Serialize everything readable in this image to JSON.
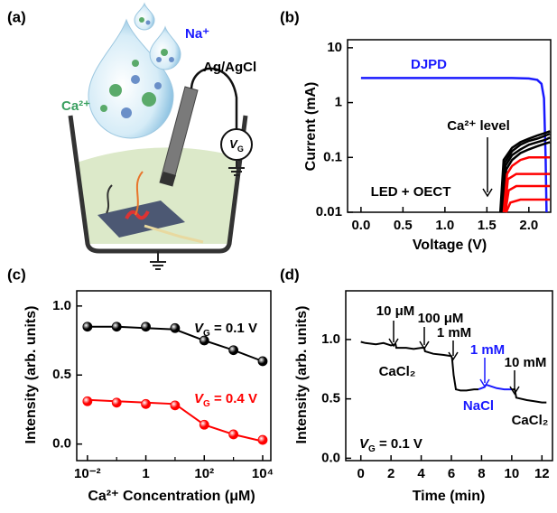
{
  "illustration": {
    "label": "(a)",
    "na": "Na⁺",
    "ca": "Ca²⁺",
    "electrode": "Ag/AgCl",
    "vg": {
      "var": "V",
      "sub": "G"
    }
  },
  "chart_data": [
    {
      "type": "line",
      "label": "(b)",
      "xlabel": "Voltage (V)",
      "ylabel": "Current (mA)",
      "ylog": true,
      "xlim": [
        -0.16,
        2.26
      ],
      "ylim": [
        0.01,
        14
      ],
      "xticks": [
        {
          "value": 0,
          "label": "0.0"
        },
        0.5,
        {
          "value": 1,
          "label": "1.0"
        },
        1.5,
        {
          "value": 2,
          "label": "2.0"
        }
      ],
      "yticks": [
        0.01,
        0.1,
        1,
        10
      ],
      "series": [
        {
          "name": "DJPD",
          "color": "#1a1aff",
          "x": [
            0,
            0.5,
            1,
            1.5,
            1.8,
            2.0,
            2.1,
            2.15,
            2.18,
            2.2,
            2.21
          ],
          "values": [
            2.8,
            2.8,
            2.8,
            2.8,
            2.8,
            2.75,
            2.6,
            2.2,
            1.2,
            0.1,
            0.01
          ]
        },
        {
          "color": "#000000",
          "x": [
            1.66,
            1.7,
            1.8,
            1.9,
            2.0,
            2.1,
            2.2,
            2.25
          ],
          "values": [
            0.01,
            0.09,
            0.15,
            0.19,
            0.22,
            0.25,
            0.28,
            0.3
          ]
        },
        {
          "color": "#000000",
          "x": [
            1.67,
            1.71,
            1.8,
            1.9,
            2.0,
            2.1,
            2.2,
            2.25
          ],
          "values": [
            0.01,
            0.08,
            0.13,
            0.17,
            0.2,
            0.22,
            0.25,
            0.27
          ]
        },
        {
          "color": "#000000",
          "x": [
            1.68,
            1.72,
            1.8,
            1.9,
            2.0,
            2.1,
            2.2,
            2.25
          ],
          "values": [
            0.01,
            0.07,
            0.11,
            0.14,
            0.17,
            0.19,
            0.21,
            0.23
          ]
        },
        {
          "color": "#000000",
          "x": [
            1.69,
            1.73,
            1.8,
            1.9,
            2.0,
            2.1,
            2.2,
            2.25
          ],
          "values": [
            0.01,
            0.06,
            0.09,
            0.12,
            0.14,
            0.16,
            0.18,
            0.19
          ]
        },
        {
          "color": "#ff0000",
          "x": [
            1.7,
            1.74,
            1.8,
            1.9,
            2.0,
            2.1,
            2.2,
            2.25
          ],
          "values": [
            0.01,
            0.05,
            0.07,
            0.09,
            0.1,
            0.1,
            0.1,
            0.1
          ]
        },
        {
          "color": "#ff0000",
          "x": [
            1.71,
            1.75,
            1.85,
            2.0,
            2.1,
            2.2,
            2.25
          ],
          "values": [
            0.01,
            0.04,
            0.05,
            0.05,
            0.05,
            0.05,
            0.05
          ]
        },
        {
          "color": "#ff0000",
          "x": [
            1.72,
            1.76,
            1.85,
            2.0,
            2.1,
            2.2,
            2.25
          ],
          "values": [
            0.01,
            0.025,
            0.03,
            0.03,
            0.03,
            0.03,
            0.03
          ]
        },
        {
          "color": "#ff0000",
          "x": [
            1.73,
            1.78,
            1.9,
            2.0,
            2.1,
            2.2,
            2.25
          ],
          "values": [
            0.01,
            0.015,
            0.017,
            0.017,
            0.017,
            0.017,
            0.017
          ]
        }
      ],
      "annotations": [
        "Ca²⁺ level",
        "LED + OECT"
      ]
    },
    {
      "type": "scatter",
      "label": "(c)",
      "xlabel": "Ca²⁺ Concentration (μM)",
      "ylabel": "Intensity (arb. units)",
      "xlog": true,
      "xlim": [
        0.0043,
        19000
      ],
      "ylim": [
        -0.12,
        1.11
      ],
      "xticks": [
        {
          "value": 0.01,
          "label": "10⁻²"
        },
        1,
        {
          "value": 100,
          "label": "10²"
        },
        {
          "value": 10000,
          "label": "10⁴"
        }
      ],
      "xminor": [
        0.1,
        10,
        1000
      ],
      "yticks": [
        {
          "value": 0,
          "label": "0.0"
        },
        0.5,
        {
          "value": 1,
          "label": "1.0"
        }
      ],
      "x": [
        0.01,
        0.1,
        1,
        10,
        100,
        1000,
        10000
      ],
      "series": [
        {
          "color": "#000000",
          "values": [
            0.85,
            0.85,
            0.85,
            0.84,
            0.75,
            0.68,
            0.6
          ],
          "fit": [
            0.85,
            0.85,
            0.84,
            0.83,
            0.75,
            0.68,
            0.6
          ],
          "annotation": {
            "var": "V",
            "sub": "G",
            "text": " = 0.1 V"
          }
        },
        {
          "color": "#ff0000",
          "values": [
            0.31,
            0.3,
            0.29,
            0.28,
            0.14,
            0.07,
            0.03
          ],
          "fit": [
            0.32,
            0.31,
            0.3,
            0.29,
            0.14,
            0.07,
            0.02
          ],
          "annotation": {
            "var": "V",
            "sub": "G",
            "text": " = 0.4 V"
          }
        }
      ]
    },
    {
      "type": "line",
      "label": "(d)",
      "xlabel": "Time (min)",
      "ylabel": "Intensity (arb. units)",
      "xlim": [
        -1.0,
        12.7
      ],
      "ylim": [
        -0.02,
        1.41
      ],
      "xticks": [
        0,
        2,
        4,
        6,
        8,
        10,
        12
      ],
      "yticks": [
        {
          "value": 0,
          "label": "0.0"
        },
        0.5,
        {
          "value": 1,
          "label": "1.0"
        }
      ],
      "series": [
        {
          "color": "#000000",
          "x": [
            0,
            0.3,
            1,
            1.5,
            2,
            2.3,
            2.35,
            3,
            3.5,
            4,
            4.2,
            4.25,
            4.8,
            5.5,
            6,
            6.05,
            6.15,
            6.3,
            6.6,
            7,
            7.5,
            7.8
          ],
          "values": [
            0.98,
            0.97,
            0.96,
            0.97,
            0.95,
            0.96,
            0.93,
            0.93,
            0.92,
            0.93,
            0.93,
            0.9,
            0.88,
            0.87,
            0.86,
            0.84,
            0.7,
            0.58,
            0.57,
            0.57,
            0.58,
            0.58
          ]
        },
        {
          "color": "#1a1aff",
          "x": [
            7.8,
            8.2,
            8.3,
            9,
            9.5,
            10
          ],
          "values": [
            0.58,
            0.6,
            0.62,
            0.59,
            0.58,
            0.58
          ]
        },
        {
          "color": "#000000",
          "x": [
            10,
            10.2,
            10.3,
            11,
            11.5,
            12,
            12.3
          ],
          "values": [
            0.58,
            0.58,
            0.51,
            0.49,
            0.48,
            0.47,
            0.47
          ]
        }
      ],
      "annotations": [
        {
          "text": "10 μM"
        },
        {
          "text": "100 μM"
        },
        {
          "text": "1 mM"
        },
        {
          "text": "1 mM",
          "color": "#1a1aff"
        },
        {
          "text": "10 mM"
        },
        {
          "text": "CaCl₂"
        },
        {
          "text": "NaCl",
          "color": "#1a1aff"
        },
        {
          "text": "CaCl₂"
        }
      ],
      "condition": {
        "var": "V",
        "sub": "G",
        "text": " = 0.1 V"
      }
    }
  ]
}
